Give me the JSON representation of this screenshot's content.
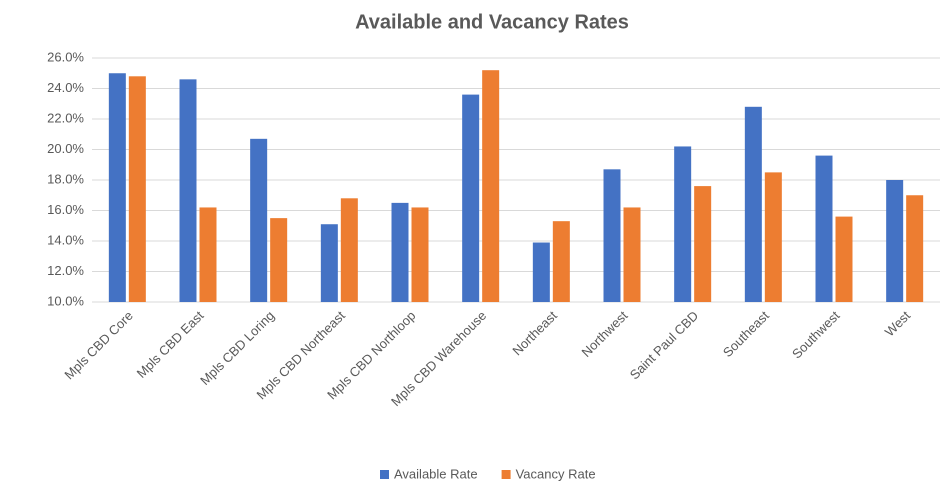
{
  "chart_data": {
    "type": "bar",
    "title": "Available and Vacancy Rates",
    "categories": [
      "Mpls CBD Core",
      "Mpls CBD East",
      "Mpls CBD Loring",
      "Mpls CBD Northeast",
      "Mpls CBD Northloop",
      "Mpls CBD Warehouse",
      "Northeast",
      "Northwest",
      "Saint Paul CBD",
      "Southeast",
      "Southwest",
      "West"
    ],
    "series": [
      {
        "name": "Available Rate",
        "color": "#4472c4",
        "values": [
          25.0,
          24.6,
          20.7,
          15.1,
          16.5,
          23.6,
          13.9,
          18.7,
          20.2,
          22.8,
          19.6,
          18.0
        ]
      },
      {
        "name": "Vacancy Rate",
        "color": "#ed7d31",
        "values": [
          24.8,
          16.2,
          15.5,
          16.8,
          16.2,
          25.2,
          15.3,
          16.2,
          17.6,
          18.5,
          15.6,
          17.0
        ]
      }
    ],
    "ylim": [
      10,
      26
    ],
    "yticks": [
      {
        "value": 10,
        "label": "10.0%"
      },
      {
        "value": 12,
        "label": "12.0%"
      },
      {
        "value": 14,
        "label": "14.0%"
      },
      {
        "value": 16,
        "label": "16.0%"
      },
      {
        "value": 18,
        "label": "18.0%"
      },
      {
        "value": 20,
        "label": "20.0%"
      },
      {
        "value": 22,
        "label": "22.0%"
      },
      {
        "value": 24,
        "label": "24.0%"
      },
      {
        "value": 26,
        "label": "26.0%"
      }
    ],
    "grid": true,
    "legend": "bottom"
  }
}
